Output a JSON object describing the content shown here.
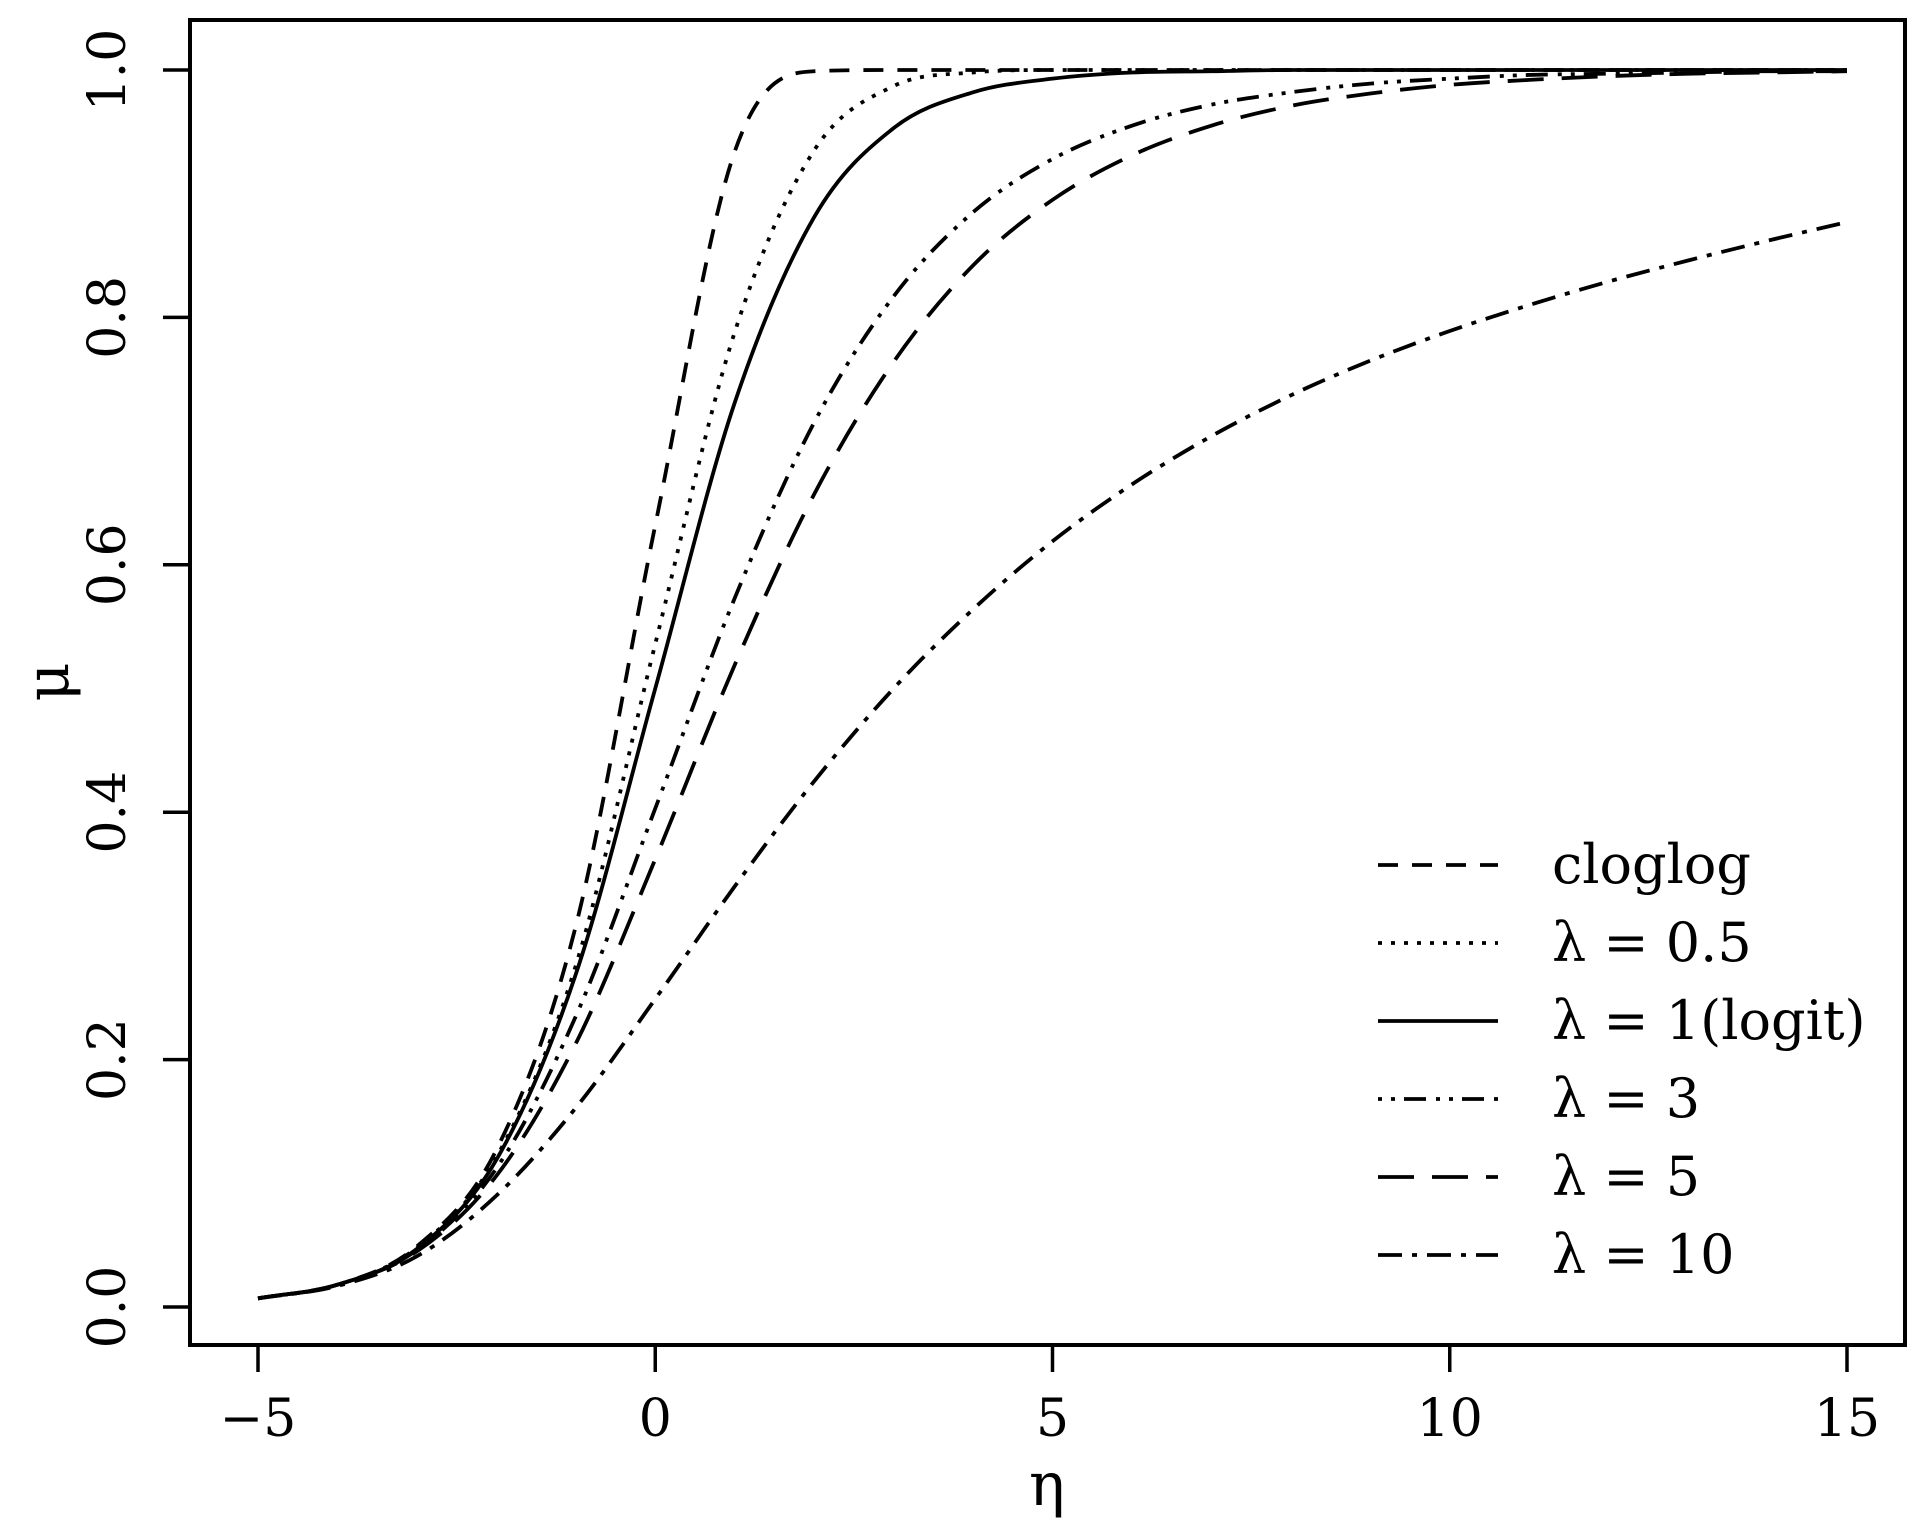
{
  "chart_data": {
    "type": "line",
    "title": "",
    "xlabel": "η",
    "ylabel": "μ",
    "xlim": [
      -5,
      15
    ],
    "ylim": [
      0,
      1
    ],
    "xticks": [
      -5,
      0,
      5,
      10,
      15
    ],
    "xtick_labels": [
      "−5",
      "0",
      "5",
      "10",
      "15"
    ],
    "yticks": [
      0,
      0.2,
      0.4,
      0.6,
      0.8,
      1
    ],
    "ytick_labels": [
      "0.0",
      "0.2",
      "0.4",
      "0.6",
      "0.8",
      "1.0"
    ],
    "grid": false,
    "legend_position": "bottom-right",
    "x": [
      -5,
      -4,
      -3,
      -2,
      -1,
      0,
      1,
      2,
      3,
      4,
      5,
      6,
      7,
      8,
      9,
      10,
      11,
      12,
      13,
      14,
      15
    ],
    "series": [
      {
        "name": "cloglog",
        "dash": "dashed",
        "values": [
          0.007,
          0.018,
          0.049,
          0.127,
          0.308,
          0.632,
          0.934,
          0.999,
          1.0,
          1.0,
          1.0,
          1.0,
          1.0,
          1.0,
          1.0,
          1.0,
          1.0,
          1.0,
          1.0,
          1.0,
          1.0
        ]
      },
      {
        "name": "λ = 0.5",
        "dash": "dotted",
        "values": [
          0.007,
          0.018,
          0.048,
          0.121,
          0.276,
          0.536,
          0.788,
          0.935,
          0.987,
          0.998,
          1.0,
          1.0,
          1.0,
          1.0,
          1.0,
          1.0,
          1.0,
          1.0,
          1.0,
          1.0,
          1.0
        ]
      },
      {
        "name": "λ = 1(logit)",
        "dash": "solid",
        "values": [
          0.007,
          0.018,
          0.047,
          0.119,
          0.269,
          0.5,
          0.731,
          0.881,
          0.953,
          0.982,
          0.993,
          0.998,
          0.999,
          1.0,
          1.0,
          1.0,
          1.0,
          1.0,
          1.0,
          1.0,
          1.0
        ]
      },
      {
        "name": "λ = 3",
        "dash": "dot-dot-dash",
        "values": [
          0.007,
          0.018,
          0.046,
          0.112,
          0.235,
          0.403,
          0.573,
          0.715,
          0.817,
          0.885,
          0.928,
          0.955,
          0.972,
          0.982,
          0.989,
          0.993,
          0.996,
          0.997,
          0.998,
          0.999,
          0.999
        ]
      },
      {
        "name": "λ = 5",
        "dash": "long-dash",
        "values": [
          0.007,
          0.018,
          0.045,
          0.106,
          0.213,
          0.362,
          0.519,
          0.657,
          0.764,
          0.842,
          0.895,
          0.931,
          0.955,
          0.971,
          0.981,
          0.988,
          0.992,
          0.995,
          0.997,
          0.998,
          0.999
        ]
      },
      {
        "name": "λ = 10",
        "dash": "dash-dot",
        "values": [
          0.007,
          0.017,
          0.041,
          0.09,
          0.161,
          0.249,
          0.34,
          0.425,
          0.5,
          0.564,
          0.619,
          0.665,
          0.704,
          0.737,
          0.765,
          0.789,
          0.81,
          0.829,
          0.846,
          0.862,
          0.877
        ]
      }
    ]
  }
}
